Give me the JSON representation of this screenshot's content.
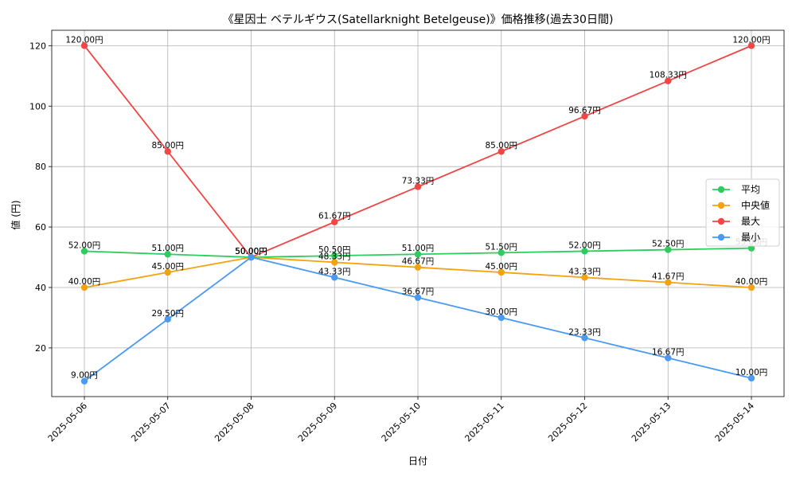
{
  "chart_data": {
    "type": "line",
    "title": "《星因士 ベテルギウス(Satellarknight Betelgeuse)》価格推移(過去30日間)",
    "xlabel": "日付",
    "ylabel": "値 (円)",
    "categories": [
      "2025-05-06",
      "2025-05-07",
      "2025-05-08",
      "2025-05-09",
      "2025-05-10",
      "2025-05-11",
      "2025-05-12",
      "2025-05-13",
      "2025-05-14"
    ],
    "ylim": [
      3.9,
      125.1
    ],
    "yticks": [
      20,
      40,
      60,
      80,
      100,
      120
    ],
    "grid": true,
    "legend_position": "right",
    "series": [
      {
        "name": "平均",
        "color": "#2ecc5f",
        "values": [
          52.0,
          51.0,
          50.0,
          50.5,
          51.0,
          51.5,
          52.0,
          52.5,
          53.0
        ],
        "labels": [
          "52.00円",
          "51.00円",
          "50.00円",
          "50.50円",
          "51.00円",
          "51.50円",
          "52.00円",
          "52.50円",
          "53.00円"
        ]
      },
      {
        "name": "中央値",
        "color": "#f5a20f",
        "values": [
          40.0,
          45.0,
          50.0,
          48.33,
          46.67,
          45.0,
          43.33,
          41.67,
          40.0
        ],
        "labels": [
          "40.00円",
          "45.00円",
          "50.00円",
          "48.33円",
          "46.67円",
          "45.00円",
          "43.33円",
          "41.67円",
          "40.00円"
        ]
      },
      {
        "name": "最大",
        "color": "#f24545",
        "values": [
          120.0,
          85.0,
          50.0,
          61.67,
          73.33,
          85.0,
          96.67,
          108.33,
          120.0
        ],
        "labels": [
          "120.00円",
          "85.00円",
          "50.00円",
          "61.67円",
          "73.33円",
          "85.00円",
          "96.67円",
          "108.33円",
          "120.00円"
        ]
      },
      {
        "name": "最小",
        "color": "#4a9af5",
        "values": [
          9.0,
          29.5,
          50.0,
          43.33,
          36.67,
          30.0,
          23.33,
          16.67,
          10.0
        ],
        "labels": [
          "9.00円",
          "29.50円",
          "50.00円",
          "43.33円",
          "36.67円",
          "30.00円",
          "23.33円",
          "16.67円",
          "10.00円"
        ]
      }
    ]
  }
}
